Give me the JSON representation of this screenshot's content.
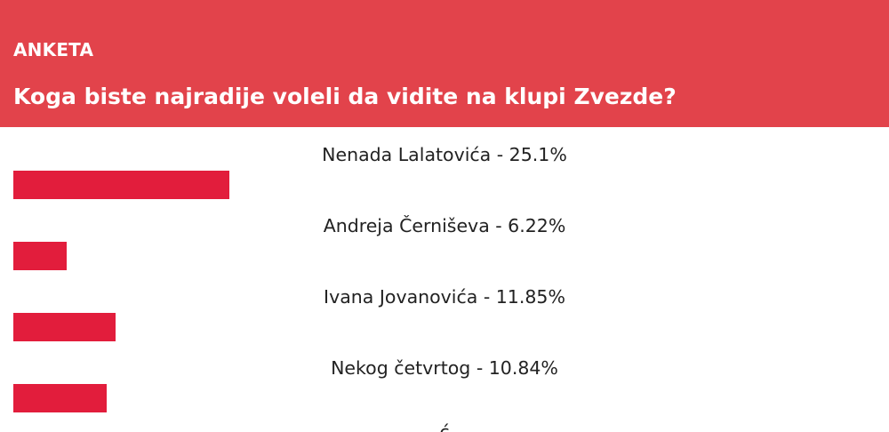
{
  "poll": {
    "tag": "ANKETA",
    "question": "Koga biste najradije voleli da vidite na klupi Zvezde?",
    "options": [
      {
        "label": "Nenada Lalatovića - 25.1%",
        "percent": 25.1
      },
      {
        "label": "Andreja Černiševa - 6.22%",
        "percent": 6.22
      },
      {
        "label": "Ivana Jovanovića - 11.85%",
        "percent": 11.85
      },
      {
        "label": "Nekog četvrtog - 10.84%",
        "percent": 10.84
      }
    ],
    "cut_off_text": "ć"
  },
  "colors": {
    "header_bg": "#e2434b",
    "header_text": "#ffffff",
    "bar": "#e21d3c",
    "option_text": "#222222",
    "page_bg": "#ffffff"
  }
}
